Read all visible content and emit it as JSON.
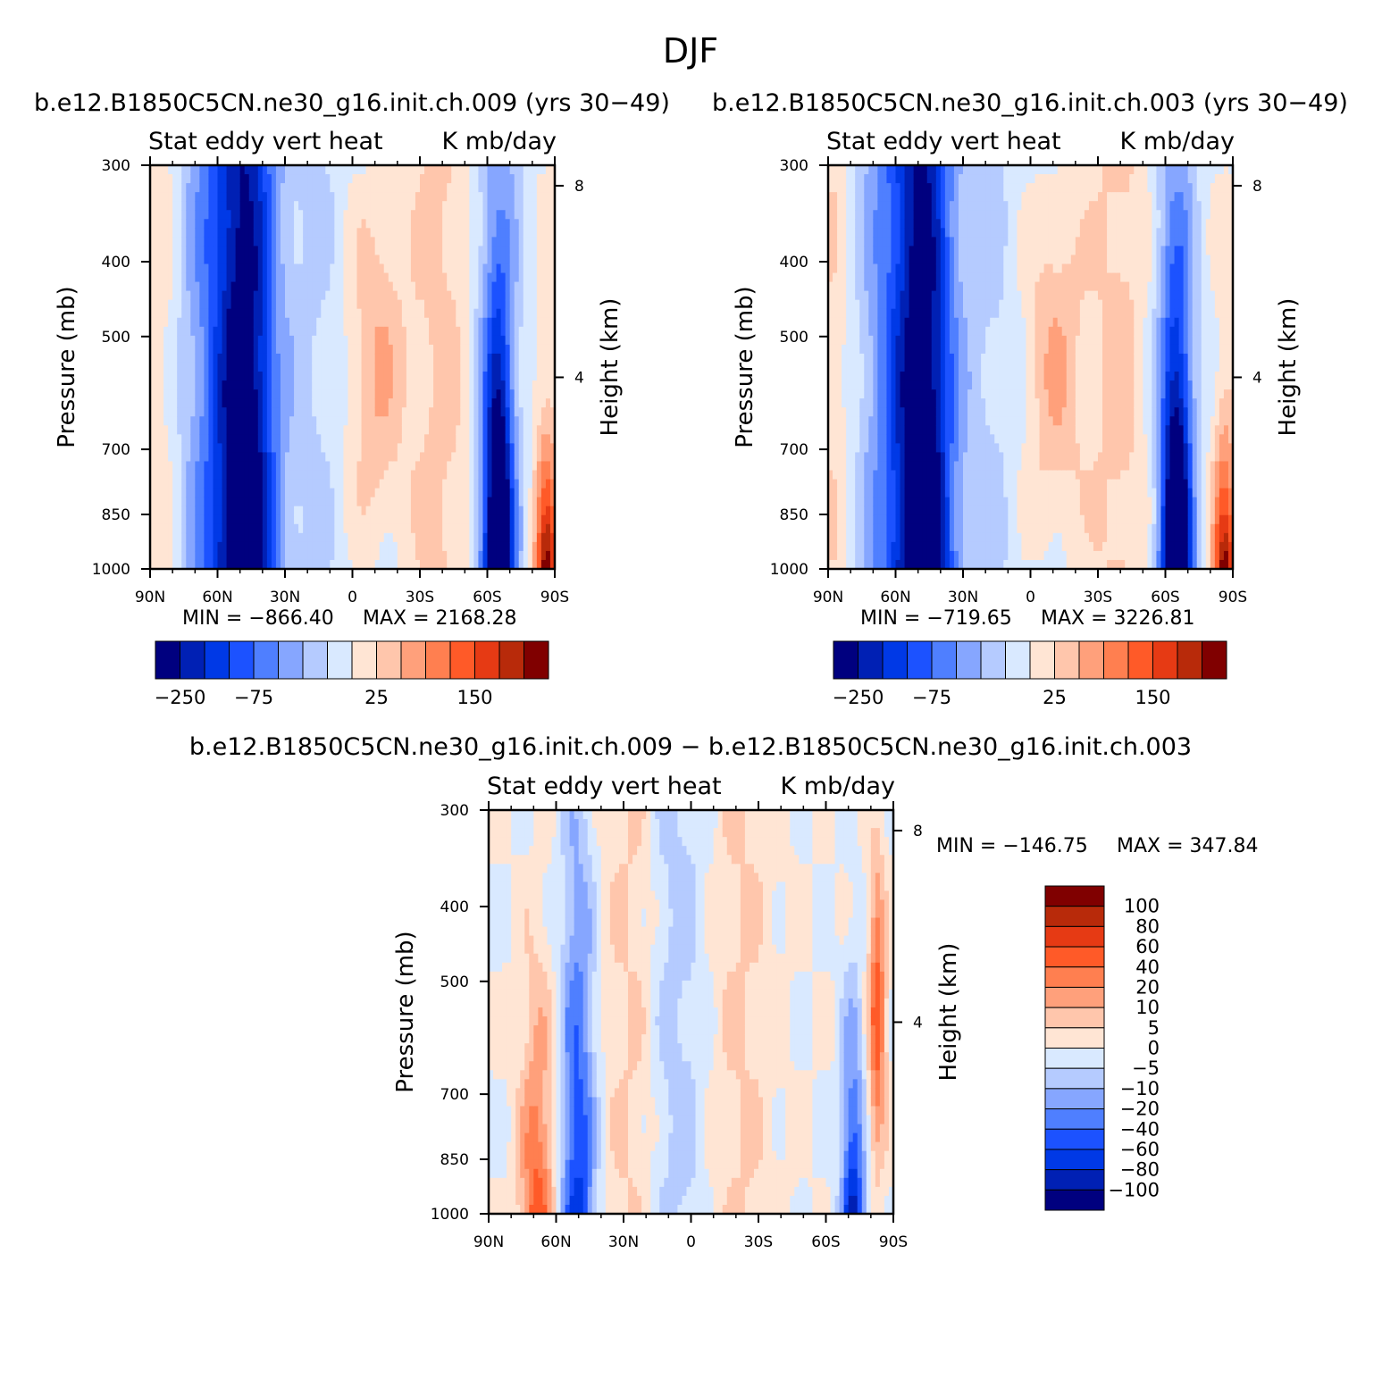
{
  "figure_title": "DJF",
  "colors": {
    "full": [
      "#00007f",
      "#0020b4",
      "#0039e6",
      "#1c52ff",
      "#4f7fff",
      "#86a6ff",
      "#b5cbff",
      "#d9e9ff",
      "#ffe5d4",
      "#ffc6ac",
      "#ffa07b",
      "#ff7f50",
      "#ff5a28",
      "#e63a14",
      "#b82a0a",
      "#800000"
    ],
    "diff": [
      "#00007f",
      "#0020b4",
      "#0039e6",
      "#1c52ff",
      "#4f7fff",
      "#86a6ff",
      "#b5cbff",
      "#d9e9ff",
      "#ffe5d4",
      "#ffc6ac",
      "#ffa07b",
      "#ff7f50",
      "#ff5a28",
      "#e63a14",
      "#b82a0a",
      "#800000"
    ]
  },
  "panels": [
    {
      "id": "left",
      "case_title": "b.e12.B1850C5CN.ne30_g16.init.ch.009 (yrs 30-49)",
      "var_label": "Stat eddy vert heat",
      "units": "K mb/day",
      "ylabel": "Pressure (mb)",
      "y2label": "Height (km)",
      "min_text": "MIN = -866.40",
      "max_text": "MAX = 2168.28"
    },
    {
      "id": "right",
      "case_title": "b.e12.B1850C5CN.ne30_g16.init.ch.003 (yrs 30-49)",
      "var_label": "Stat eddy vert heat",
      "units": "K mb/day",
      "ylabel": "Pressure (mb)",
      "y2label": "Height (km)",
      "min_text": "MIN = -719.65",
      "max_text": "MAX = 3226.81"
    },
    {
      "id": "diff",
      "case_title": "b.e12.B1850C5CN.ne30_g16.init.ch.009 - b.e12.B1850C5CN.ne30_g16.init.ch.003",
      "var_label": "Stat eddy vert heat",
      "units": "K mb/day",
      "ylabel": "Pressure (mb)",
      "y2label": "Height (km)",
      "min_text": "MIN = -146.75",
      "max_text": "MAX = 347.84"
    }
  ],
  "chart_data": [
    {
      "type": "heatmap",
      "panel": "left",
      "x_ticks": [
        "90N",
        "60N",
        "30N",
        "0",
        "30S",
        "60S",
        "90S"
      ],
      "y_ticks": [
        "300",
        "400",
        "500",
        "700",
        "850",
        "1000"
      ],
      "y2_ticks": [
        "8",
        "4"
      ],
      "colorbar_labels": [
        "-250",
        "-75",
        "25",
        "150"
      ],
      "xlim": [
        "90N",
        "90S"
      ],
      "ylim": [
        1000,
        300
      ]
    },
    {
      "type": "heatmap",
      "panel": "right",
      "x_ticks": [
        "90N",
        "60N",
        "30N",
        "0",
        "30S",
        "60S",
        "90S"
      ],
      "y_ticks": [
        "300",
        "400",
        "500",
        "700",
        "850",
        "1000"
      ],
      "y2_ticks": [
        "8",
        "4"
      ],
      "colorbar_labels": [
        "-250",
        "-75",
        "25",
        "150"
      ],
      "xlim": [
        "90N",
        "90S"
      ],
      "ylim": [
        1000,
        300
      ]
    },
    {
      "type": "heatmap",
      "panel": "diff",
      "x_ticks": [
        "90N",
        "60N",
        "30N",
        "0",
        "30S",
        "60S",
        "90S"
      ],
      "y_ticks": [
        "300",
        "400",
        "500",
        "700",
        "850",
        "1000"
      ],
      "y2_ticks": [
        "8",
        "4"
      ],
      "colorbar_labels": [
        "100",
        "80",
        "60",
        "40",
        "20",
        "10",
        "5",
        "0",
        "-5",
        "-10",
        "-20",
        "-40",
        "-60",
        "-80",
        "-100"
      ],
      "xlim": [
        "90N",
        "90S"
      ],
      "ylim": [
        1000,
        300
      ]
    }
  ]
}
